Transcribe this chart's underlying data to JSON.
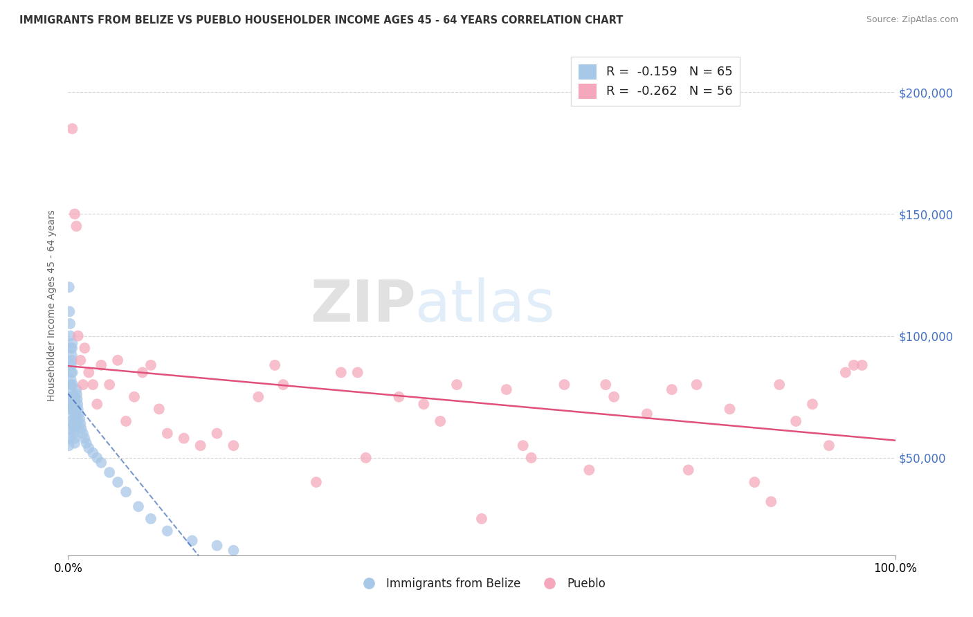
{
  "title": "IMMIGRANTS FROM BELIZE VS PUEBLO HOUSEHOLDER INCOME AGES 45 - 64 YEARS CORRELATION CHART",
  "source": "Source: ZipAtlas.com",
  "ylabel": "Householder Income Ages 45 - 64 years",
  "xlim": [
    0.0,
    100.0
  ],
  "ylim": [
    10000,
    215000
  ],
  "yticks": [
    50000,
    100000,
    150000,
    200000
  ],
  "ytick_labels": [
    "$50,000",
    "$100,000",
    "$150,000",
    "$200,000"
  ],
  "xticks": [
    0.0,
    100.0
  ],
  "xtick_labels": [
    "0.0%",
    "100.0%"
  ],
  "legend_r1": "-0.159",
  "legend_n1": "65",
  "legend_r2": "-0.262",
  "legend_n2": "56",
  "series1_label": "Immigrants from Belize",
  "series2_label": "Pueblo",
  "color1": "#a8c8e8",
  "color2": "#f5a8bc",
  "trend1_color": "#2255aa",
  "trend2_color": "#e0507a",
  "watermark_zip": "ZIP",
  "watermark_atlas": "atlas",
  "belize_x": [
    0.1,
    0.15,
    0.18,
    0.2,
    0.22,
    0.25,
    0.28,
    0.3,
    0.32,
    0.35,
    0.38,
    0.4,
    0.42,
    0.45,
    0.48,
    0.5,
    0.52,
    0.55,
    0.58,
    0.6,
    0.62,
    0.65,
    0.68,
    0.7,
    0.72,
    0.75,
    0.78,
    0.8,
    0.82,
    0.85,
    0.88,
    0.9,
    0.92,
    0.95,
    0.98,
    1.0,
    1.05,
    1.1,
    1.15,
    1.2,
    1.3,
    1.4,
    1.5,
    1.6,
    1.8,
    2.0,
    2.2,
    2.5,
    3.0,
    3.5,
    4.0,
    5.0,
    6.0,
    7.0,
    8.5,
    10.0,
    12.0,
    15.0,
    18.0,
    20.0,
    0.12,
    0.17,
    0.23,
    0.27,
    0.33
  ],
  "belize_y": [
    55000,
    58000,
    62000,
    65000,
    70000,
    72000,
    75000,
    78000,
    80000,
    82000,
    85000,
    88000,
    90000,
    92000,
    95000,
    97000,
    85000,
    80000,
    75000,
    72000,
    70000,
    68000,
    66000,
    64000,
    62000,
    60000,
    58000,
    56000,
    75000,
    73000,
    71000,
    69000,
    67000,
    65000,
    63000,
    78000,
    76000,
    74000,
    72000,
    70000,
    68000,
    66000,
    64000,
    62000,
    60000,
    58000,
    56000,
    54000,
    52000,
    50000,
    48000,
    44000,
    40000,
    36000,
    30000,
    25000,
    20000,
    16000,
    14000,
    12000,
    120000,
    110000,
    105000,
    100000,
    95000
  ],
  "pueblo_x": [
    0.5,
    0.8,
    1.0,
    1.2,
    1.5,
    1.8,
    2.0,
    2.5,
    3.0,
    3.5,
    4.0,
    5.0,
    6.0,
    7.0,
    8.0,
    9.0,
    10.0,
    11.0,
    12.0,
    14.0,
    16.0,
    18.0,
    20.0,
    23.0,
    26.0,
    30.0,
    33.0,
    36.0,
    40.0,
    43.0,
    47.0,
    50.0,
    53.0,
    56.0,
    60.0,
    63.0,
    66.0,
    70.0,
    73.0,
    76.0,
    80.0,
    83.0,
    86.0,
    88.0,
    90.0,
    92.0,
    94.0,
    96.0,
    35.0,
    45.0,
    55.0,
    65.0,
    75.0,
    85.0,
    95.0,
    25.0
  ],
  "pueblo_y": [
    185000,
    150000,
    145000,
    100000,
    90000,
    80000,
    95000,
    85000,
    80000,
    72000,
    88000,
    80000,
    90000,
    65000,
    75000,
    85000,
    88000,
    70000,
    60000,
    58000,
    55000,
    60000,
    55000,
    75000,
    80000,
    40000,
    85000,
    50000,
    75000,
    72000,
    80000,
    25000,
    78000,
    50000,
    80000,
    45000,
    75000,
    68000,
    78000,
    80000,
    70000,
    40000,
    80000,
    65000,
    72000,
    55000,
    85000,
    88000,
    85000,
    65000,
    55000,
    80000,
    45000,
    32000,
    88000,
    88000
  ]
}
